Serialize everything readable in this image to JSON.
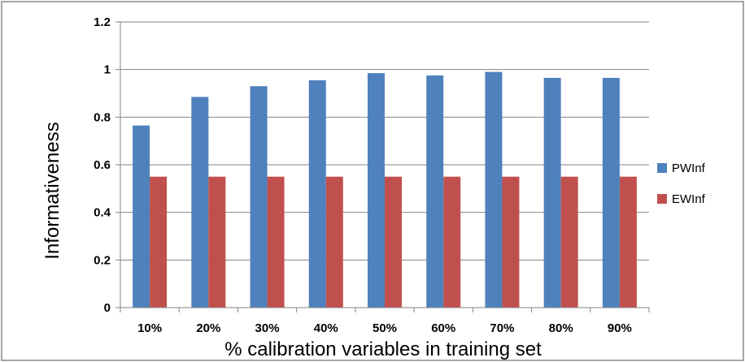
{
  "chart_data": {
    "type": "bar",
    "title": "",
    "xlabel": "% calibration variables in training set",
    "ylabel": "Informativeness",
    "categories": [
      "10%",
      "20%",
      "30%",
      "40%",
      "50%",
      "60%",
      "70%",
      "80%",
      "90%"
    ],
    "series": [
      {
        "name": "PWInf",
        "color": "#4F81BD",
        "values": [
          0.765,
          0.885,
          0.93,
          0.955,
          0.985,
          0.975,
          0.99,
          0.965,
          0.965
        ]
      },
      {
        "name": "EWInf",
        "color": "#C0504D",
        "values": [
          0.55,
          0.55,
          0.55,
          0.55,
          0.55,
          0.55,
          0.55,
          0.55,
          0.55
        ]
      }
    ],
    "ylim": [
      0,
      1.2
    ],
    "yticks": [
      "0",
      "0.2",
      "0.4",
      "0.6",
      "0.8",
      "1",
      "1.2"
    ],
    "grid": true,
    "legend": "right"
  }
}
